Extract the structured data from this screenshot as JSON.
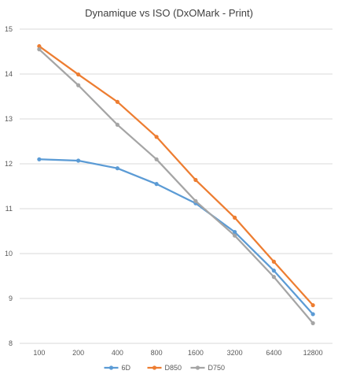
{
  "chart_data": {
    "type": "line",
    "title": "Dynamique vs ISO (DxOMark - Print)",
    "xlabel": "",
    "ylabel": "",
    "categories": [
      "100",
      "200",
      "400",
      "800",
      "1600",
      "3200",
      "6400",
      "12800"
    ],
    "ylim": [
      8,
      15
    ],
    "yticks": [
      8,
      9,
      10,
      11,
      12,
      13,
      14,
      15
    ],
    "grid": true,
    "legend_position": "bottom",
    "series": [
      {
        "name": "6D",
        "color": "#5b9bd5",
        "values": [
          12.1,
          12.07,
          11.9,
          11.55,
          11.12,
          10.48,
          9.62,
          8.65
        ]
      },
      {
        "name": "D850",
        "color": "#ed7d31",
        "values": [
          14.62,
          13.99,
          13.38,
          12.6,
          11.64,
          10.8,
          9.82,
          8.85
        ]
      },
      {
        "name": "D750",
        "color": "#a5a5a5",
        "values": [
          14.55,
          13.75,
          12.87,
          12.1,
          11.17,
          10.4,
          9.48,
          8.45
        ]
      }
    ]
  }
}
